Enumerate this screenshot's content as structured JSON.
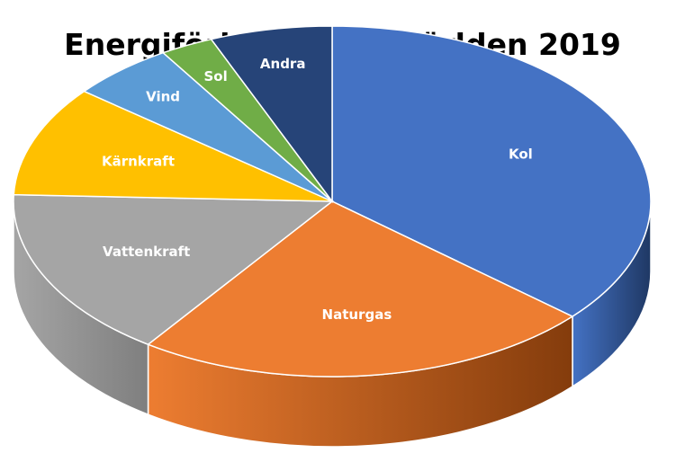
{
  "chart_data": {
    "type": "pie",
    "title": "Energiförbrukning i världen 2019",
    "style": "3d",
    "categories": [
      "Kol",
      "Naturgas",
      "Vattenkraft",
      "Kärnkraft",
      "Vind",
      "Sol",
      "Andra"
    ],
    "values": [
      36.4,
      23.4,
      15.8,
      10.2,
      5.3,
      2.7,
      6.2
    ],
    "unit": "%",
    "colors": [
      "#4472c4",
      "#ed7d31",
      "#a5a5a5",
      "#ffc000",
      "#5b9bd5",
      "#70ad47",
      "#264478"
    ],
    "side_colors": [
      "#1f3864",
      "#843c0c",
      "#7f7f7f",
      "#bf9000",
      "#2e75b6",
      "#507e32",
      "#172a4d"
    ],
    "label_color": "#ffffff",
    "legend": "none",
    "data_labels": "category-name"
  }
}
